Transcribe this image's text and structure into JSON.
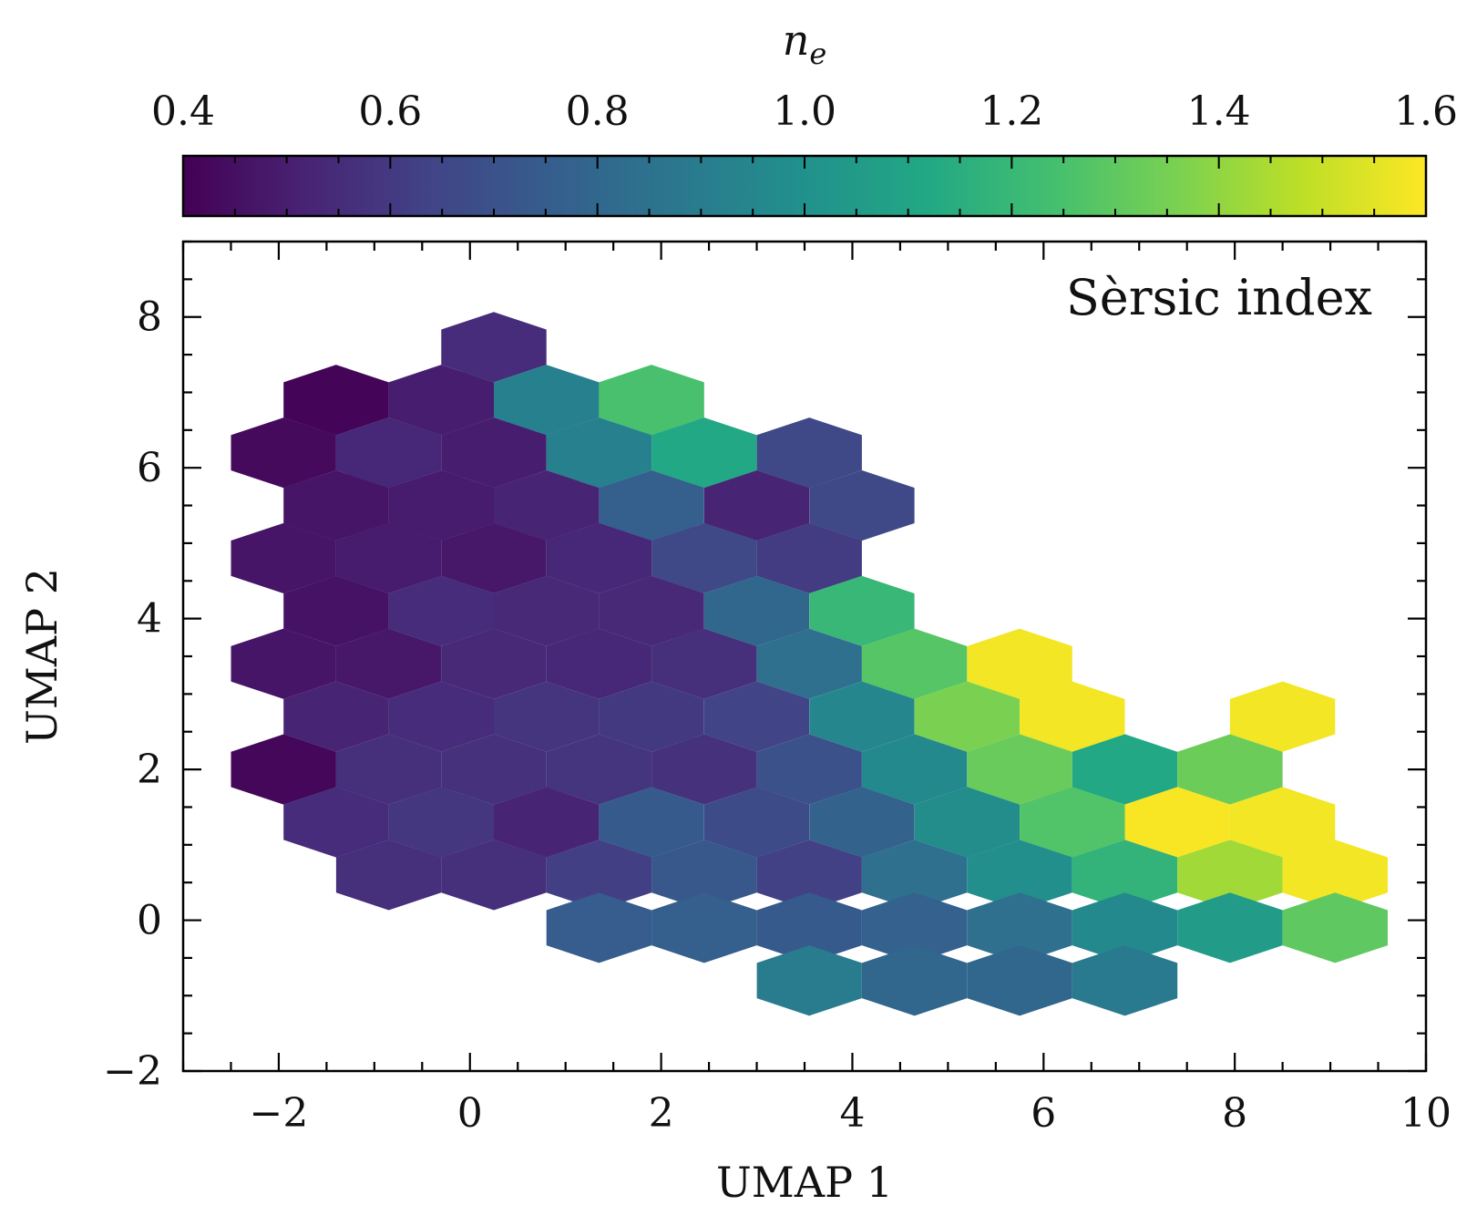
{
  "chart_data": {
    "type": "heatmap",
    "subtype": "hexbin",
    "xlabel": "UMAP 1",
    "ylabel": "UMAP 2",
    "xlim": [
      -3,
      10
    ],
    "ylim": [
      -2,
      9
    ],
    "xticks": [
      -2,
      0,
      2,
      4,
      6,
      8,
      10
    ],
    "xtick_labels": [
      "−2",
      "0",
      "2",
      "4",
      "6",
      "8",
      "10"
    ],
    "yticks": [
      -2,
      0,
      2,
      4,
      6,
      8
    ],
    "ytick_labels": [
      "−2",
      "0",
      "2",
      "4",
      "6",
      "8"
    ],
    "annotation": "Sèrsic index",
    "annotation_position": "top-right",
    "colorbar": {
      "title": "n_e",
      "title_base": "n",
      "title_sub": "e",
      "colormap": "viridis",
      "range": [
        0.4,
        1.6
      ],
      "ticks": [
        0.4,
        0.6,
        0.8,
        1.0,
        1.2,
        1.4,
        1.6
      ],
      "tick_labels": [
        "0.4",
        "0.6",
        "0.8",
        "1.0",
        "1.2",
        "1.4",
        "1.6"
      ],
      "orientation": "horizontal",
      "placement": "top"
    },
    "hex_width_x": 1.09,
    "hex_row_step_y": 0.69,
    "cells": [
      {
        "x": 0.25,
        "y": 7.6,
        "v": 0.55
      },
      {
        "x": -1.4,
        "y": 6.9,
        "v": 0.41
      },
      {
        "x": -0.3,
        "y": 6.9,
        "v": 0.5
      },
      {
        "x": 0.8,
        "y": 6.9,
        "v": 0.92
      },
      {
        "x": 1.9,
        "y": 6.9,
        "v": 1.25
      },
      {
        "x": -1.95,
        "y": 6.2,
        "v": 0.43
      },
      {
        "x": -0.85,
        "y": 6.2,
        "v": 0.53
      },
      {
        "x": 0.25,
        "y": 6.2,
        "v": 0.5
      },
      {
        "x": 1.35,
        "y": 6.2,
        "v": 0.92
      },
      {
        "x": 2.45,
        "y": 6.2,
        "v": 1.12
      },
      {
        "x": 3.55,
        "y": 6.2,
        "v": 0.66
      },
      {
        "x": -1.4,
        "y": 5.5,
        "v": 0.47
      },
      {
        "x": -0.3,
        "y": 5.5,
        "v": 0.49
      },
      {
        "x": 0.8,
        "y": 5.5,
        "v": 0.52
      },
      {
        "x": 1.9,
        "y": 5.5,
        "v": 0.76
      },
      {
        "x": 3.0,
        "y": 5.5,
        "v": 0.52
      },
      {
        "x": 4.1,
        "y": 5.5,
        "v": 0.66
      },
      {
        "x": -1.95,
        "y": 4.8,
        "v": 0.47
      },
      {
        "x": -0.85,
        "y": 4.8,
        "v": 0.49
      },
      {
        "x": 0.25,
        "y": 4.8,
        "v": 0.48
      },
      {
        "x": 1.35,
        "y": 4.8,
        "v": 0.53
      },
      {
        "x": 2.45,
        "y": 4.8,
        "v": 0.66
      },
      {
        "x": 3.55,
        "y": 4.8,
        "v": 0.61
      },
      {
        "x": -1.4,
        "y": 4.1,
        "v": 0.46
      },
      {
        "x": -0.3,
        "y": 4.1,
        "v": 0.55
      },
      {
        "x": 0.8,
        "y": 4.1,
        "v": 0.54
      },
      {
        "x": 1.9,
        "y": 4.1,
        "v": 0.54
      },
      {
        "x": 3.0,
        "y": 4.1,
        "v": 0.8
      },
      {
        "x": 4.1,
        "y": 4.1,
        "v": 1.2
      },
      {
        "x": -1.95,
        "y": 3.4,
        "v": 0.47
      },
      {
        "x": -0.85,
        "y": 3.4,
        "v": 0.48
      },
      {
        "x": 0.25,
        "y": 3.4,
        "v": 0.54
      },
      {
        "x": 1.35,
        "y": 3.4,
        "v": 0.53
      },
      {
        "x": 2.45,
        "y": 3.4,
        "v": 0.56
      },
      {
        "x": 3.55,
        "y": 3.4,
        "v": 0.84
      },
      {
        "x": 4.65,
        "y": 3.4,
        "v": 1.28
      },
      {
        "x": 5.75,
        "y": 3.4,
        "v": 1.58
      },
      {
        "x": -1.4,
        "y": 2.7,
        "v": 0.52
      },
      {
        "x": -0.3,
        "y": 2.7,
        "v": 0.55
      },
      {
        "x": 0.8,
        "y": 2.7,
        "v": 0.58
      },
      {
        "x": 1.9,
        "y": 2.7,
        "v": 0.6
      },
      {
        "x": 3.0,
        "y": 2.7,
        "v": 0.64
      },
      {
        "x": 4.1,
        "y": 2.7,
        "v": 0.95
      },
      {
        "x": 5.2,
        "y": 2.7,
        "v": 1.36
      },
      {
        "x": 6.3,
        "y": 2.7,
        "v": 1.58
      },
      {
        "x": 8.5,
        "y": 2.7,
        "v": 1.58
      },
      {
        "x": -1.95,
        "y": 2.0,
        "v": 0.42
      },
      {
        "x": -0.85,
        "y": 2.0,
        "v": 0.56
      },
      {
        "x": 0.25,
        "y": 2.0,
        "v": 0.57
      },
      {
        "x": 1.35,
        "y": 2.0,
        "v": 0.58
      },
      {
        "x": 2.45,
        "y": 2.0,
        "v": 0.57
      },
      {
        "x": 3.55,
        "y": 2.0,
        "v": 0.7
      },
      {
        "x": 4.65,
        "y": 2.0,
        "v": 0.96
      },
      {
        "x": 5.75,
        "y": 2.0,
        "v": 1.32
      },
      {
        "x": 6.85,
        "y": 2.0,
        "v": 1.12
      },
      {
        "x": 7.95,
        "y": 2.0,
        "v": 1.33
      },
      {
        "x": -1.4,
        "y": 1.3,
        "v": 0.55
      },
      {
        "x": -0.3,
        "y": 1.3,
        "v": 0.59
      },
      {
        "x": 0.8,
        "y": 1.3,
        "v": 0.52
      },
      {
        "x": 1.9,
        "y": 1.3,
        "v": 0.74
      },
      {
        "x": 3.0,
        "y": 1.3,
        "v": 0.67
      },
      {
        "x": 4.1,
        "y": 1.3,
        "v": 0.78
      },
      {
        "x": 5.2,
        "y": 1.3,
        "v": 0.98
      },
      {
        "x": 6.3,
        "y": 1.3,
        "v": 1.27
      },
      {
        "x": 7.4,
        "y": 1.3,
        "v": 1.59
      },
      {
        "x": 8.5,
        "y": 1.3,
        "v": 1.58
      },
      {
        "x": -0.85,
        "y": 0.6,
        "v": 0.56
      },
      {
        "x": 0.25,
        "y": 0.6,
        "v": 0.56
      },
      {
        "x": 1.35,
        "y": 0.6,
        "v": 0.62
      },
      {
        "x": 2.45,
        "y": 0.6,
        "v": 0.73
      },
      {
        "x": 3.55,
        "y": 0.6,
        "v": 0.63
      },
      {
        "x": 4.65,
        "y": 0.6,
        "v": 0.84
      },
      {
        "x": 5.75,
        "y": 0.6,
        "v": 0.99
      },
      {
        "x": 6.85,
        "y": 0.6,
        "v": 1.18
      },
      {
        "x": 7.95,
        "y": 0.6,
        "v": 1.43
      },
      {
        "x": 9.05,
        "y": 0.6,
        "v": 1.58
      },
      {
        "x": 1.35,
        "y": -0.1,
        "v": 0.75
      },
      {
        "x": 2.45,
        "y": -0.1,
        "v": 0.76
      },
      {
        "x": 3.55,
        "y": -0.1,
        "v": 0.74
      },
      {
        "x": 4.65,
        "y": -0.1,
        "v": 0.77
      },
      {
        "x": 5.75,
        "y": -0.1,
        "v": 0.84
      },
      {
        "x": 6.85,
        "y": -0.1,
        "v": 0.96
      },
      {
        "x": 7.95,
        "y": -0.1,
        "v": 1.06
      },
      {
        "x": 9.05,
        "y": -0.1,
        "v": 1.3
      },
      {
        "x": 3.55,
        "y": -0.8,
        "v": 0.9
      },
      {
        "x": 4.65,
        "y": -0.8,
        "v": 0.8
      },
      {
        "x": 5.75,
        "y": -0.8,
        "v": 0.8
      },
      {
        "x": 6.85,
        "y": -0.8,
        "v": 0.89
      }
    ]
  }
}
